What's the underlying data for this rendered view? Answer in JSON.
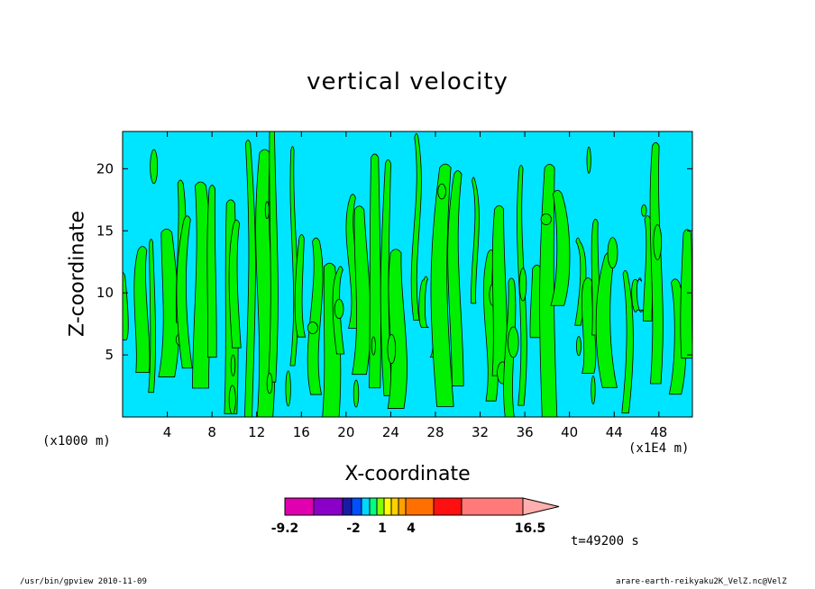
{
  "chart_data": {
    "type": "heatmap",
    "title": "vertical velocity",
    "xlabel": "X-coordinate",
    "ylabel": "Z-coordinate",
    "x_unit_left": "(x1000 m)",
    "x_unit_right": "(x1E4 m)",
    "xlim": [
      0,
      51
    ],
    "ylim": [
      0,
      23
    ],
    "x_ticks": [
      4,
      8,
      12,
      16,
      20,
      24,
      28,
      32,
      36,
      40,
      44,
      48
    ],
    "y_ticks": [
      5,
      10,
      15,
      20
    ],
    "field_colors": {
      "negative": "#00e5ff",
      "positive": "#00f000",
      "contour": "#000000"
    },
    "colorbar": {
      "colors": [
        "#e000b0",
        "#8a00c8",
        "#1a1aa8",
        "#0050ff",
        "#00d8ff",
        "#00ff80",
        "#80ff00",
        "#ffff00",
        "#ffd000",
        "#ffa000",
        "#ff7000",
        "#ff1010",
        "#ff7a78",
        "#ffb0ae"
      ],
      "tick_labels": [
        "-9.2",
        "-2",
        "1",
        "4",
        "16.5"
      ],
      "tick_values": [
        -9.2,
        -2,
        1,
        4,
        16.5
      ]
    },
    "time_label": "t=49200 s"
  },
  "footer": {
    "left": "/usr/bin/gpview   2010-11-09",
    "right": "arare-earth-reikyaku2K_VelZ.nc@VelZ"
  }
}
